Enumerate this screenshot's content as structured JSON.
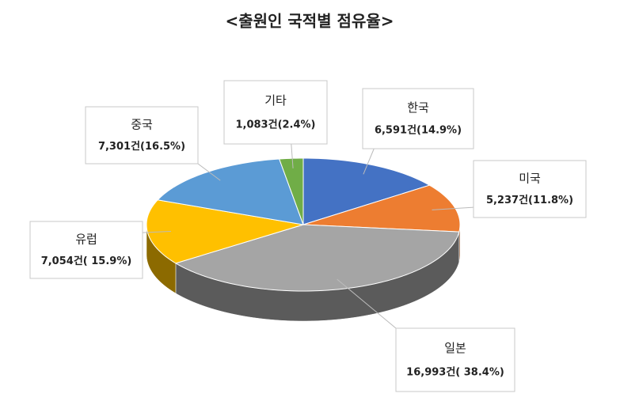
{
  "chart_data": {
    "type": "pie",
    "title": "<출원인 국적별 점유율>",
    "categories": [
      "한국",
      "미국",
      "일본",
      "유럽",
      "중국",
      "기타"
    ],
    "values": [
      6591,
      5237,
      16993,
      7054,
      7301,
      1083
    ],
    "value_labels": [
      "6,591건(14.9%)",
      "5,237건(11.8%)",
      "16,993건( 38.4%)",
      "7,054건( 15.9%)",
      "7,301건(16.5%)",
      "1,083건(2.4%)"
    ],
    "colors": [
      "#4472c4",
      "#ed7d31",
      "#a5a5a5",
      "#ffc000",
      "#5b9bd5",
      "#70ad47"
    ]
  }
}
